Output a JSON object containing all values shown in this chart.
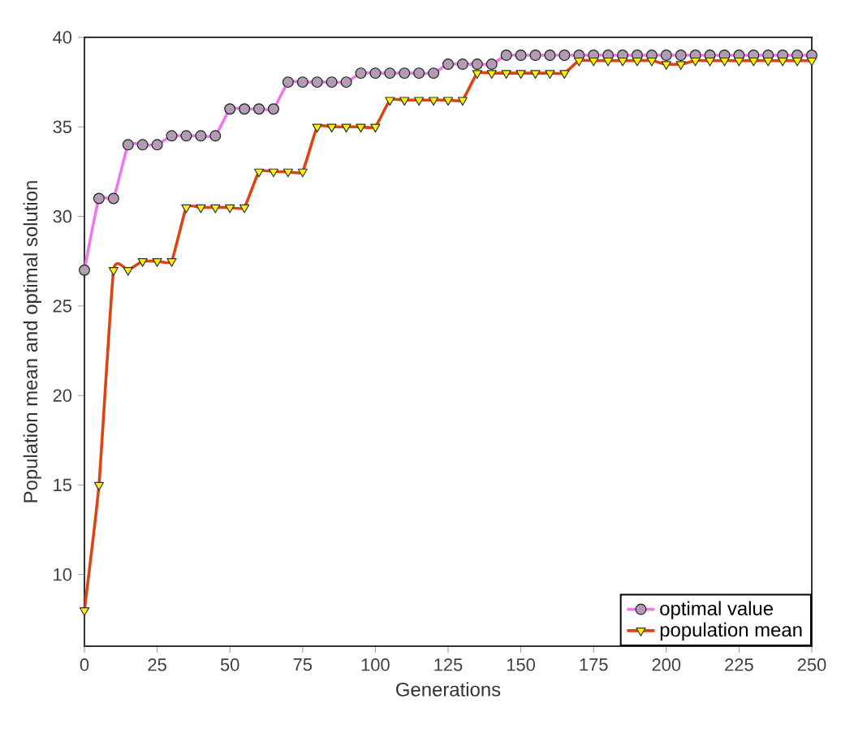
{
  "chart_data": {
    "type": "line",
    "xlabel": "Generations",
    "ylabel": "Population mean and optimal solution",
    "x": [
      0,
      5,
      10,
      15,
      20,
      25,
      30,
      35,
      40,
      45,
      50,
      55,
      60,
      65,
      70,
      75,
      80,
      85,
      90,
      95,
      100,
      105,
      110,
      115,
      120,
      125,
      130,
      135,
      140,
      145,
      150,
      155,
      160,
      165,
      170,
      175,
      180,
      185,
      190,
      195,
      200,
      205,
      210,
      215,
      220,
      225,
      230,
      235,
      240,
      245,
      250
    ],
    "series": [
      {
        "name": "optimal value",
        "color": "#ee77ee",
        "marker": "circle",
        "values": [
          27,
          31,
          31,
          34,
          34,
          34,
          34.5,
          34.5,
          34.5,
          34.5,
          36,
          36,
          36,
          36,
          37.5,
          37.5,
          37.5,
          37.5,
          37.5,
          38,
          38,
          38,
          38,
          38,
          38,
          38.5,
          38.5,
          38.5,
          38.5,
          39,
          39,
          39,
          39,
          39,
          39,
          39,
          39,
          39,
          39,
          39,
          39,
          39,
          39,
          39,
          39,
          39,
          39,
          39,
          39,
          39,
          39
        ]
      },
      {
        "name": "population mean",
        "color": "#dd4411",
        "marker": "triangle",
        "values": [
          8,
          15,
          27,
          27,
          27.5,
          27.5,
          27.5,
          30.5,
          30.5,
          30.5,
          30.5,
          30.5,
          32.5,
          32.5,
          32.5,
          32.5,
          35,
          35,
          35,
          35,
          35,
          36.5,
          36.5,
          36.5,
          36.5,
          36.5,
          36.5,
          38,
          38,
          38,
          38,
          38,
          38,
          38,
          38.7,
          38.7,
          38.7,
          38.7,
          38.7,
          38.7,
          38.5,
          38.5,
          38.7,
          38.7,
          38.7,
          38.7,
          38.7,
          38.7,
          38.7,
          38.7,
          38.7
        ]
      }
    ],
    "xlim": [
      0,
      250
    ],
    "ylim": [
      6,
      40
    ],
    "xticks": [
      0,
      25,
      50,
      75,
      100,
      125,
      150,
      175,
      200,
      225,
      250
    ],
    "yticks": [
      10,
      15,
      20,
      25,
      30,
      35,
      40
    ],
    "legend": "bottom right"
  }
}
